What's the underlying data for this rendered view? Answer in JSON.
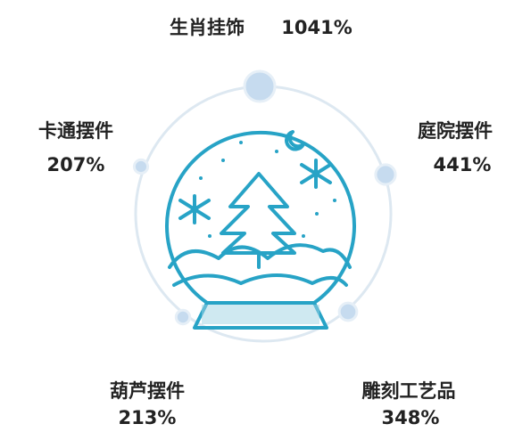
{
  "chart_data": {
    "type": "radial-bubble",
    "categories": [
      "生肖挂饰",
      "庭院摆件",
      "雕刻工艺品",
      "葫芦摆件",
      "卡通摆件"
    ],
    "values": [
      1041,
      441,
      348,
      213,
      207
    ],
    "value_labels": [
      "1041%",
      "441%",
      "348%",
      "213%",
      "207%"
    ],
    "color": "#c6dbef"
  }
}
